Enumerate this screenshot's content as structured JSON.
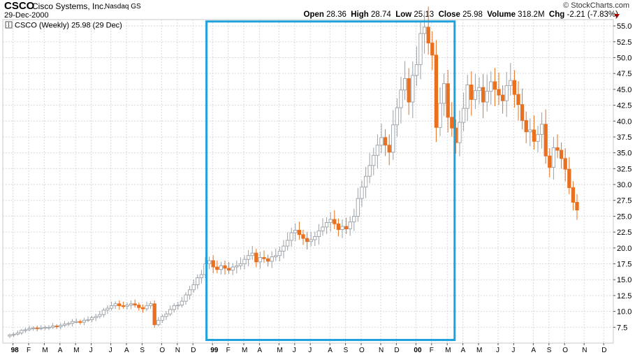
{
  "header": {
    "symbol": "CSCO",
    "company": "Cisco Systems, Inc.",
    "exchange": "Nasdaq GS",
    "date": "29-Dec-2000",
    "brand": "© StockCharts.com",
    "open_label": "Open",
    "open_value": "28.36",
    "high_label": "High",
    "high_value": "28.74",
    "low_label": "Low",
    "low_value": "25.13",
    "close_label": "Close",
    "close_value": "25.98",
    "volume_label": "Volume",
    "volume_value": "318.2M",
    "chg_label": "Chg",
    "chg_value": "-2.21 (-7.83%)"
  },
  "colors": {
    "up": "#9aa0a6",
    "down": "#e8701e",
    "highlight": "#1ea1dc",
    "grid": "#d9d9d9"
  },
  "chart_data": {
    "type": "candlestick",
    "legend": "CSCO (Weekly) 25.98 (29 Dec)",
    "ylim": [
      5,
      56
    ],
    "y_ticks": [
      "7.5",
      "10.0",
      "12.5",
      "15.0",
      "17.5",
      "20.0",
      "22.5",
      "25.0",
      "27.5",
      "30.0",
      "32.5",
      "35.0",
      "37.5",
      "40.0",
      "42.5",
      "45.0",
      "47.5",
      "50.0",
      "52.5",
      "55.0"
    ],
    "x_ticks": [
      {
        "label": "98",
        "bold": true
      },
      {
        "label": "F"
      },
      {
        "label": "M"
      },
      {
        "label": "A"
      },
      {
        "label": "M"
      },
      {
        "label": "J"
      },
      {
        "label": "J"
      },
      {
        "label": "A"
      },
      {
        "label": "S"
      },
      {
        "label": "O"
      },
      {
        "label": "N"
      },
      {
        "label": "D"
      },
      {
        "label": "99",
        "bold": true
      },
      {
        "label": "F"
      },
      {
        "label": "M"
      },
      {
        "label": "A"
      },
      {
        "label": "M"
      },
      {
        "label": "J"
      },
      {
        "label": "J"
      },
      {
        "label": "A"
      },
      {
        "label": "S"
      },
      {
        "label": "O"
      },
      {
        "label": "N"
      },
      {
        "label": "D"
      },
      {
        "label": "00",
        "bold": true
      },
      {
        "label": "F"
      },
      {
        "label": "M"
      },
      {
        "label": "A"
      },
      {
        "label": "M"
      },
      {
        "label": "J"
      },
      {
        "label": "J"
      },
      {
        "label": "A"
      },
      {
        "label": "S"
      },
      {
        "label": "O"
      },
      {
        "label": "N"
      },
      {
        "label": "D"
      }
    ],
    "highlight_box": {
      "from_week": 51,
      "to_week": 113,
      "y_low": 5.5,
      "y_high": 55.7
    },
    "closes": [
      6.3,
      6.4,
      6.6,
      7.0,
      7.1,
      7.3,
      7.4,
      7.3,
      7.4,
      7.5,
      7.5,
      7.7,
      7.6,
      7.8,
      8.0,
      8.1,
      8.4,
      8.4,
      8.3,
      8.6,
      8.7,
      9.0,
      9.2,
      9.5,
      10.2,
      10.5,
      10.9,
      11.2,
      10.9,
      10.8,
      11.0,
      11.2,
      11.0,
      10.6,
      10.4,
      10.9,
      11.2,
      7.9,
      8.6,
      9.2,
      9.6,
      10.3,
      10.9,
      11.0,
      11.6,
      12.6,
      13.4,
      14.2,
      15.3,
      15.8,
      17.5,
      18.0,
      17.0,
      16.6,
      17.2,
      16.8,
      16.5,
      17.0,
      17.2,
      17.5,
      18.2,
      18.8,
      19.2,
      17.8,
      18.5,
      18.3,
      17.9,
      18.6,
      18.8,
      19.5,
      20.3,
      21.2,
      22.4,
      22.8,
      22.1,
      21.5,
      21.0,
      21.3,
      21.8,
      22.7,
      23.3,
      24.0,
      24.5,
      23.8,
      22.9,
      23.4,
      23.0,
      24.1,
      25.0,
      27.8,
      29.6,
      31.3,
      33.0,
      34.6,
      36.2,
      37.4,
      36.2,
      35.1,
      39.4,
      42.1,
      44.9,
      46.7,
      43.0,
      47.2,
      48.9,
      53.8,
      54.8,
      52.3,
      50.4,
      39.0,
      42.8,
      45.9,
      40.6,
      38.9,
      36.6,
      39.8,
      42.0,
      45.7,
      43.4,
      44.8,
      45.3,
      43.0,
      44.7,
      46.2,
      45.0,
      44.1,
      43.2,
      45.6,
      46.4,
      44.2,
      42.6,
      40.1,
      38.3,
      38.6,
      36.8,
      37.9,
      39.5,
      34.5,
      32.7,
      35.8,
      35.4,
      34.1,
      32.4,
      29.5,
      27.2,
      25.98
    ]
  },
  "x_index": [
    1,
    5,
    9,
    13,
    17,
    21,
    26,
    30,
    34,
    39,
    43,
    47,
    52,
    56,
    60,
    64,
    69,
    73,
    77,
    82,
    86,
    90,
    95,
    99,
    104,
    108,
    112,
    116,
    120,
    125,
    129,
    134,
    138,
    142,
    147,
    152
  ]
}
